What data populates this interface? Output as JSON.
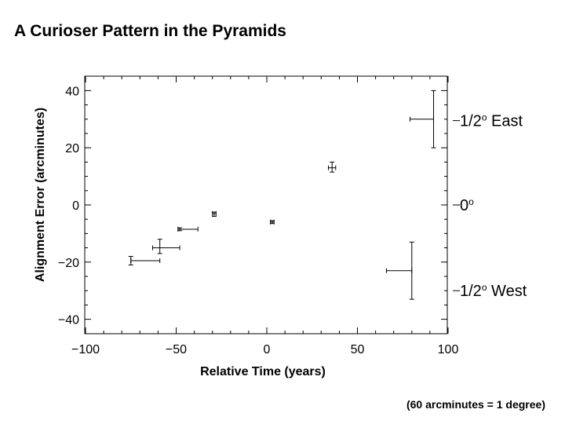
{
  "slide": {
    "title": "A Curioser Pattern in the Pyramids",
    "footnote": "(60 arcminutes = 1 degree)"
  },
  "chart_data": {
    "type": "scatter",
    "title": "",
    "xlabel": "Relative Time (years)",
    "ylabel": "Alignment Error (arcminutes)",
    "xlim": [
      -100,
      100
    ],
    "ylim": [
      -45,
      45
    ],
    "xticks": [
      -100,
      -50,
      0,
      50,
      100
    ],
    "xtick_labels": [
      "−100",
      "−50",
      "0",
      "50",
      "100"
    ],
    "yticks": [
      -40,
      -20,
      0,
      20,
      40
    ],
    "ytick_labels": [
      "−40",
      "−20",
      "0",
      "20",
      "40"
    ],
    "grid": false,
    "points": [
      {
        "x": -75,
        "y": -19.5,
        "x_low": -75,
        "x_high": -59,
        "y_low": -21,
        "y_high": -18
      },
      {
        "x": -59,
        "y": -15,
        "x_low": -63,
        "x_high": -48,
        "y_low": -17,
        "y_high": -12
      },
      {
        "x": -48,
        "y": -8.5,
        "x_low": -49,
        "x_high": -38,
        "y_low": -9,
        "y_high": -8
      },
      {
        "x": -29,
        "y": -3,
        "x_low": -30,
        "x_high": -28,
        "y_low": -4,
        "y_high": -2.5
      },
      {
        "x": 3,
        "y": -6,
        "x_low": 2,
        "x_high": 4,
        "y_low": -6.5,
        "y_high": -5.5
      },
      {
        "x": 36,
        "y": 13,
        "x_low": 34,
        "x_high": 38,
        "y_low": 11.5,
        "y_high": 15
      },
      {
        "x": 92,
        "y": 30,
        "x_low": 79,
        "x_high": 92,
        "y_low": 20,
        "y_high": 40
      },
      {
        "x": 80,
        "y": -23,
        "x_low": 66,
        "x_high": 80,
        "y_low": -33,
        "y_high": -13
      }
    ],
    "right_axis": [
      {
        "y": 29.5,
        "label_main": "1/2",
        "label_sup": "o",
        "label_rest": " East"
      },
      {
        "y": 0,
        "label_main": "0",
        "label_sup": "o",
        "label_rest": ""
      },
      {
        "y": -30,
        "label_main": "1/2",
        "label_sup": "o",
        "label_rest": " West"
      }
    ]
  }
}
